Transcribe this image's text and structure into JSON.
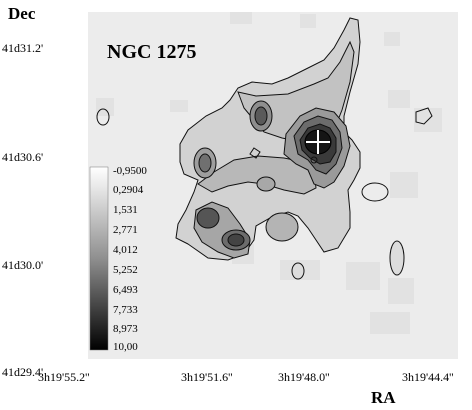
{
  "axes": {
    "y_title": "Dec",
    "x_title": "RA",
    "y_ticks": [
      "41d31.2'",
      "41d30.6'",
      "41d30.0'",
      "41d29.4'"
    ],
    "x_ticks": [
      "3h19'55.2''",
      "3h19'51.6''",
      "3h19'48.0''",
      "3h19'44.4''"
    ]
  },
  "object_label": "NGC 1275",
  "colorbar": {
    "levels": [
      "-0,9500",
      "0,2904",
      "1,531",
      "2,771",
      "4,012",
      "5,252",
      "6,493",
      "7,733",
      "8,973",
      "10,00"
    ]
  },
  "marker": "white-cross"
}
